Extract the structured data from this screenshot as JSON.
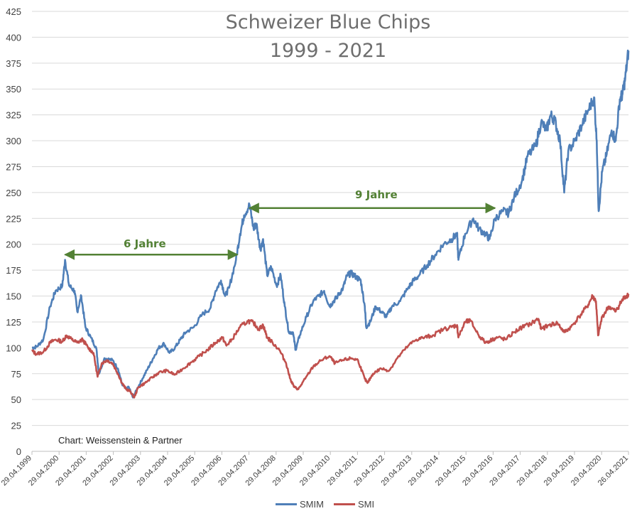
{
  "chart_data": {
    "type": "line",
    "title_line1": "Schweizer Blue Chips",
    "title_line2": "1999 - 2021",
    "source": "Chart: Weissenstein & Partner",
    "ylim": [
      0,
      425
    ],
    "y_ticks": [
      0,
      25,
      50,
      75,
      100,
      125,
      150,
      175,
      200,
      225,
      250,
      275,
      300,
      325,
      350,
      375,
      400,
      425
    ],
    "grid": "horizontal",
    "legend_position": "bottom",
    "x_tick_labels": [
      "29.04.1999",
      "29.04.2000",
      "29.04.2001",
      "29.04.2002",
      "29.04.2003",
      "29.04.2004",
      "29.04.2005",
      "29.04.2006",
      "29.04.2007",
      "29.04.2008",
      "29.04.2009",
      "29.04.2010",
      "29.04.2011",
      "29.04.2012",
      "29.04.2013",
      "29.04.2014",
      "29.04.2015",
      "29.04.2016",
      "29.04.2017",
      "29.04.2018",
      "29.04.2019",
      "29.04.2020",
      "26.04.2021"
    ],
    "x_tick_years": [
      1999.33,
      2000.33,
      2001.33,
      2002.33,
      2003.33,
      2004.33,
      2005.33,
      2006.33,
      2007.33,
      2008.33,
      2009.33,
      2010.33,
      2011.33,
      2012.33,
      2013.33,
      2014.33,
      2015.33,
      2016.33,
      2017.33,
      2018.33,
      2019.33,
      2020.33,
      2021.32
    ],
    "series": [
      {
        "name": "SMIM",
        "color": "#4f7fb8",
        "points": [
          [
            1999.33,
            100
          ],
          [
            1999.5,
            101
          ],
          [
            1999.75,
            108
          ],
          [
            2000.0,
            140
          ],
          [
            2000.2,
            155
          ],
          [
            2000.45,
            160
          ],
          [
            2000.55,
            185
          ],
          [
            2000.7,
            160
          ],
          [
            2000.9,
            155
          ],
          [
            2001.0,
            135
          ],
          [
            2001.15,
            150
          ],
          [
            2001.3,
            120
          ],
          [
            2001.5,
            110
          ],
          [
            2001.7,
            100
          ],
          [
            2001.8,
            75
          ],
          [
            2002.0,
            90
          ],
          [
            2002.3,
            88
          ],
          [
            2002.5,
            80
          ],
          [
            2002.65,
            65
          ],
          [
            2002.8,
            60
          ],
          [
            2002.9,
            62
          ],
          [
            2003.05,
            52
          ],
          [
            2003.2,
            60
          ],
          [
            2003.4,
            70
          ],
          [
            2003.6,
            80
          ],
          [
            2003.8,
            90
          ],
          [
            2004.0,
            100
          ],
          [
            2004.2,
            104
          ],
          [
            2004.4,
            95
          ],
          [
            2004.6,
            100
          ],
          [
            2004.8,
            108
          ],
          [
            2005.0,
            115
          ],
          [
            2005.3,
            120
          ],
          [
            2005.6,
            132
          ],
          [
            2005.9,
            138
          ],
          [
            2006.1,
            155
          ],
          [
            2006.3,
            165
          ],
          [
            2006.45,
            150
          ],
          [
            2006.6,
            158
          ],
          [
            2006.85,
            185
          ],
          [
            2007.0,
            210
          ],
          [
            2007.15,
            228
          ],
          [
            2007.35,
            238
          ],
          [
            2007.5,
            215
          ],
          [
            2007.6,
            220
          ],
          [
            2007.75,
            195
          ],
          [
            2007.85,
            205
          ],
          [
            2008.0,
            170
          ],
          [
            2008.15,
            178
          ],
          [
            2008.35,
            160
          ],
          [
            2008.5,
            170
          ],
          [
            2008.65,
            140
          ],
          [
            2008.8,
            115
          ],
          [
            2008.95,
            115
          ],
          [
            2009.05,
            98
          ],
          [
            2009.2,
            112
          ],
          [
            2009.45,
            130
          ],
          [
            2009.7,
            145
          ],
          [
            2009.9,
            150
          ],
          [
            2010.1,
            155
          ],
          [
            2010.3,
            140
          ],
          [
            2010.45,
            145
          ],
          [
            2010.6,
            150
          ],
          [
            2010.8,
            158
          ],
          [
            2010.95,
            170
          ],
          [
            2011.1,
            172
          ],
          [
            2011.3,
            168
          ],
          [
            2011.45,
            165
          ],
          [
            2011.6,
            140
          ],
          [
            2011.65,
            120
          ],
          [
            2011.8,
            125
          ],
          [
            2012.0,
            140
          ],
          [
            2012.2,
            135
          ],
          [
            2012.4,
            130
          ],
          [
            2012.6,
            140
          ],
          [
            2012.9,
            145
          ],
          [
            2013.2,
            158
          ],
          [
            2013.4,
            165
          ],
          [
            2013.6,
            170
          ],
          [
            2013.9,
            180
          ],
          [
            2014.2,
            190
          ],
          [
            2014.5,
            200
          ],
          [
            2014.8,
            205
          ],
          [
            2015.0,
            210
          ],
          [
            2015.05,
            185
          ],
          [
            2015.3,
            210
          ],
          [
            2015.6,
            225
          ],
          [
            2015.8,
            215
          ],
          [
            2016.05,
            210
          ],
          [
            2016.2,
            205
          ],
          [
            2016.4,
            225
          ],
          [
            2016.7,
            232
          ],
          [
            2016.9,
            230
          ],
          [
            2017.1,
            245
          ],
          [
            2017.4,
            262
          ],
          [
            2017.6,
            285
          ],
          [
            2017.9,
            295
          ],
          [
            2018.1,
            318
          ],
          [
            2018.3,
            310
          ],
          [
            2018.45,
            325
          ],
          [
            2018.6,
            320
          ],
          [
            2018.8,
            300
          ],
          [
            2018.95,
            250
          ],
          [
            2019.1,
            290
          ],
          [
            2019.35,
            300
          ],
          [
            2019.6,
            315
          ],
          [
            2019.85,
            330
          ],
          [
            2020.05,
            342
          ],
          [
            2020.15,
            300
          ],
          [
            2020.22,
            232
          ],
          [
            2020.35,
            270
          ],
          [
            2020.5,
            285
          ],
          [
            2020.7,
            310
          ],
          [
            2020.85,
            300
          ],
          [
            2021.0,
            340
          ],
          [
            2021.1,
            345
          ],
          [
            2021.2,
            360
          ],
          [
            2021.32,
            387
          ]
        ]
      },
      {
        "name": "SMI",
        "color": "#c0504d",
        "points": [
          [
            1999.33,
            97
          ],
          [
            1999.5,
            94
          ],
          [
            1999.75,
            96
          ],
          [
            2000.0,
            105
          ],
          [
            2000.2,
            108
          ],
          [
            2000.45,
            106
          ],
          [
            2000.6,
            112
          ],
          [
            2000.8,
            108
          ],
          [
            2001.0,
            105
          ],
          [
            2001.2,
            108
          ],
          [
            2001.4,
            100
          ],
          [
            2001.6,
            95
          ],
          [
            2001.75,
            72
          ],
          [
            2001.9,
            85
          ],
          [
            2002.1,
            88
          ],
          [
            2002.3,
            85
          ],
          [
            2002.5,
            75
          ],
          [
            2002.65,
            66
          ],
          [
            2002.8,
            60
          ],
          [
            2002.95,
            58
          ],
          [
            2003.1,
            52
          ],
          [
            2003.25,
            62
          ],
          [
            2003.5,
            66
          ],
          [
            2003.8,
            72
          ],
          [
            2004.0,
            76
          ],
          [
            2004.3,
            78
          ],
          [
            2004.6,
            74
          ],
          [
            2004.9,
            80
          ],
          [
            2005.2,
            86
          ],
          [
            2005.5,
            92
          ],
          [
            2005.8,
            98
          ],
          [
            2006.1,
            105
          ],
          [
            2006.35,
            110
          ],
          [
            2006.5,
            102
          ],
          [
            2006.7,
            108
          ],
          [
            2007.0,
            120
          ],
          [
            2007.3,
            126
          ],
          [
            2007.5,
            124
          ],
          [
            2007.7,
            118
          ],
          [
            2007.85,
            122
          ],
          [
            2008.0,
            110
          ],
          [
            2008.2,
            105
          ],
          [
            2008.45,
            98
          ],
          [
            2008.7,
            85
          ],
          [
            2008.85,
            70
          ],
          [
            2009.0,
            62
          ],
          [
            2009.15,
            60
          ],
          [
            2009.4,
            70
          ],
          [
            2009.7,
            82
          ],
          [
            2010.0,
            88
          ],
          [
            2010.3,
            92
          ],
          [
            2010.5,
            85
          ],
          [
            2010.8,
            88
          ],
          [
            2011.1,
            90
          ],
          [
            2011.35,
            88
          ],
          [
            2011.6,
            70
          ],
          [
            2011.7,
            66
          ],
          [
            2011.9,
            75
          ],
          [
            2012.2,
            80
          ],
          [
            2012.5,
            78
          ],
          [
            2012.8,
            90
          ],
          [
            2013.2,
            102
          ],
          [
            2013.5,
            108
          ],
          [
            2013.8,
            110
          ],
          [
            2014.1,
            112
          ],
          [
            2014.5,
            118
          ],
          [
            2014.8,
            120
          ],
          [
            2015.0,
            122
          ],
          [
            2015.05,
            110
          ],
          [
            2015.3,
            125
          ],
          [
            2015.5,
            126
          ],
          [
            2015.8,
            112
          ],
          [
            2016.05,
            105
          ],
          [
            2016.3,
            108
          ],
          [
            2016.5,
            110
          ],
          [
            2016.8,
            108
          ],
          [
            2017.1,
            115
          ],
          [
            2017.4,
            120
          ],
          [
            2017.7,
            123
          ],
          [
            2018.0,
            128
          ],
          [
            2018.1,
            118
          ],
          [
            2018.4,
            122
          ],
          [
            2018.7,
            124
          ],
          [
            2018.95,
            115
          ],
          [
            2019.2,
            120
          ],
          [
            2019.5,
            130
          ],
          [
            2019.8,
            140
          ],
          [
            2020.0,
            150
          ],
          [
            2020.12,
            145
          ],
          [
            2020.2,
            112
          ],
          [
            2020.35,
            130
          ],
          [
            2020.6,
            140
          ],
          [
            2020.85,
            135
          ],
          [
            2021.0,
            142
          ],
          [
            2021.15,
            148
          ],
          [
            2021.32,
            152
          ]
        ]
      }
    ],
    "annotations": [
      {
        "label": "6 Jahre",
        "from_year": 2000.55,
        "to_year": 2006.9,
        "y": 190
      },
      {
        "label": "9 Jahre",
        "from_year": 2007.35,
        "to_year": 2016.4,
        "y": 235
      }
    ]
  }
}
